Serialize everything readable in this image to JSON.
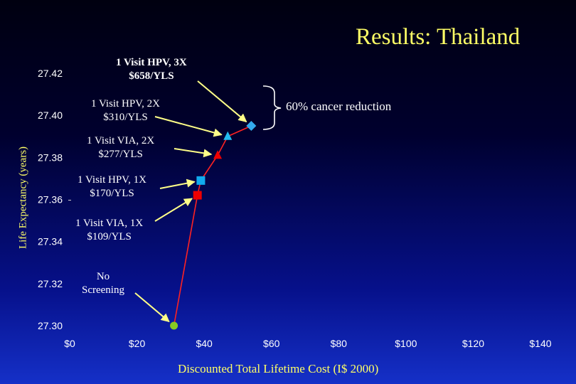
{
  "slide_title": "Results: Thailand",
  "bracket_note": "60% cancer reduction",
  "chart_data": {
    "type": "line",
    "xlabel": "Discounted Total Lifetime Cost (I$ 2000)",
    "ylabel": "Life Expectancy (years)",
    "xlim": [
      0,
      140
    ],
    "ylim": [
      27.3,
      27.42
    ],
    "x_ticks": [
      "$0",
      "$20",
      "$40",
      "$60",
      "$80",
      "$100",
      "$120",
      "$140"
    ],
    "y_ticks": [
      "27.30",
      "27.32",
      "27.34",
      "27.36",
      "27.38",
      "27.40",
      "27.42"
    ],
    "series": [
      {
        "points": [
          {
            "x": 31,
            "y": 27.3,
            "marker": "circle",
            "color": "#88cc22",
            "label": [
              "No",
              "Screening"
            ]
          },
          {
            "x": 38,
            "y": 27.362,
            "marker": "square",
            "color": "#ee0000",
            "label": [
              "1 Visit VIA, 1X",
              "$109/YLS"
            ]
          },
          {
            "x": 39,
            "y": 27.369,
            "marker": "square",
            "color": "#11aaee",
            "label": [
              "1 Visit HPV, 1X",
              "$170/YLS"
            ]
          },
          {
            "x": 44,
            "y": 27.381,
            "marker": "triangle",
            "color": "#ee0000",
            "label": [
              "1 Visit VIA, 2X",
              "$277/YLS"
            ]
          },
          {
            "x": 47,
            "y": 27.39,
            "marker": "triangle",
            "color": "#22bbee",
            "label": [
              "1 Visit HPV, 2X",
              "$310/YLS"
            ]
          },
          {
            "x": 54,
            "y": 27.395,
            "marker": "diamond",
            "color": "#33aaee",
            "label": [
              "1 Visit HPV, 3X",
              "$658/YLS"
            ]
          }
        ]
      }
    ],
    "line_color": "#ff2222",
    "arrow_color": "#ffff88",
    "axis_text_color": "#ffffff",
    "label_color": "#ffff66"
  }
}
